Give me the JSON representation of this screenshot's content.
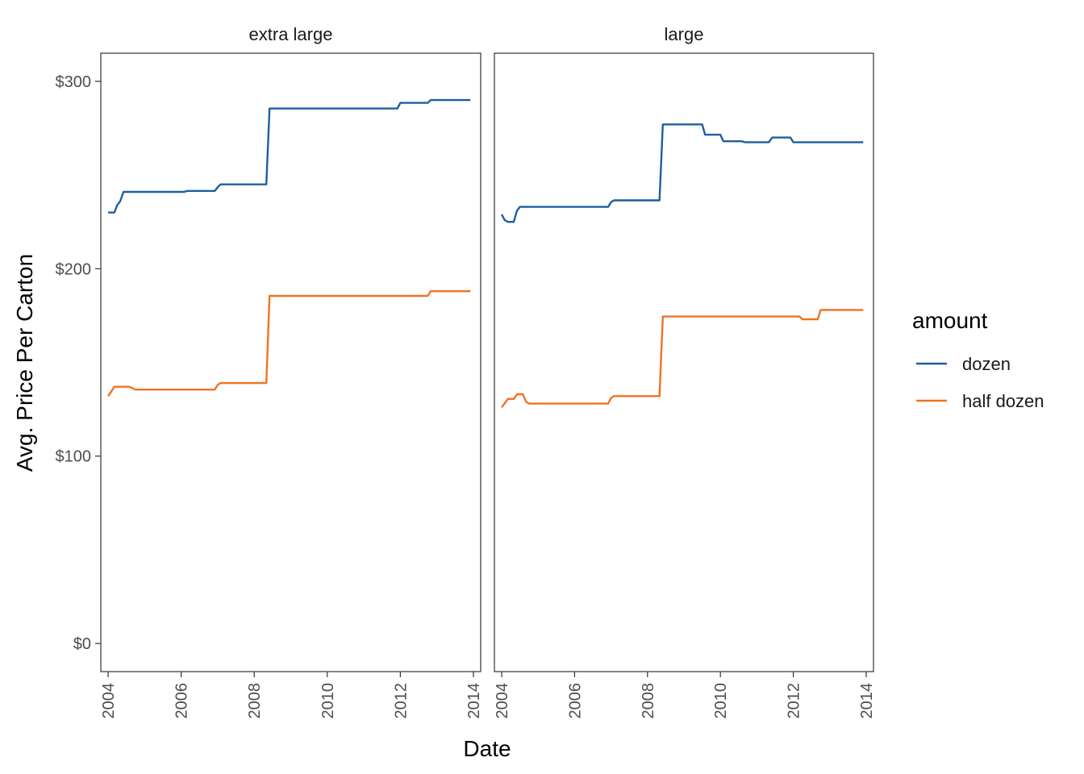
{
  "chart_data": {
    "type": "line",
    "xlabel": "Date",
    "ylabel": "Avg. Price Per Carton",
    "ylim": [
      -15,
      315
    ],
    "xlim": [
      2003.8,
      2014.2
    ],
    "x_ticks": [
      2004,
      2006,
      2008,
      2010,
      2012,
      2014
    ],
    "x_tick_labels": [
      "2004",
      "2006",
      "2008",
      "2010",
      "2012",
      "2014"
    ],
    "y_ticks": [
      0,
      100,
      200,
      300
    ],
    "y_tick_labels": [
      "$0",
      "$100",
      "$200",
      "$300"
    ],
    "grid": false,
    "legend": {
      "title": "amount",
      "placement": "right",
      "entries": [
        {
          "label": "dozen",
          "color": "#1f5f9e"
        },
        {
          "label": "half dozen",
          "color": "#f07222"
        }
      ]
    },
    "panels": [
      {
        "title": "extra large",
        "series": [
          {
            "name": "dozen",
            "color": "#1f5f9e",
            "points": [
              [
                2004.0,
                230
              ],
              [
                2004.17,
                230
              ],
              [
                2004.25,
                234
              ],
              [
                2004.33,
                236
              ],
              [
                2004.42,
                241
              ],
              [
                2006.08,
                241
              ],
              [
                2006.17,
                241.5
              ],
              [
                2006.92,
                241.5
              ],
              [
                2007.0,
                243.5
              ],
              [
                2007.08,
                245
              ],
              [
                2008.33,
                245
              ],
              [
                2008.42,
                285.5
              ],
              [
                2011.92,
                285.5
              ],
              [
                2012.0,
                288.5
              ],
              [
                2012.75,
                288.5
              ],
              [
                2012.83,
                290
              ],
              [
                2013.92,
                290
              ]
            ]
          },
          {
            "name": "half dozen",
            "color": "#f07222",
            "points": [
              [
                2004.0,
                132
              ],
              [
                2004.17,
                137
              ],
              [
                2004.58,
                137
              ],
              [
                2004.75,
                135.5
              ],
              [
                2006.92,
                135.5
              ],
              [
                2007.0,
                138
              ],
              [
                2007.08,
                139
              ],
              [
                2008.33,
                139
              ],
              [
                2008.42,
                185.5
              ],
              [
                2012.75,
                185.5
              ],
              [
                2012.83,
                188
              ],
              [
                2013.92,
                188
              ]
            ]
          }
        ]
      },
      {
        "title": "large",
        "series": [
          {
            "name": "dozen",
            "color": "#1f5f9e",
            "points": [
              [
                2004.0,
                229
              ],
              [
                2004.08,
                226
              ],
              [
                2004.17,
                225
              ],
              [
                2004.33,
                225
              ],
              [
                2004.42,
                231
              ],
              [
                2004.5,
                233
              ],
              [
                2006.92,
                233
              ],
              [
                2007.0,
                235.5
              ],
              [
                2007.08,
                236.5
              ],
              [
                2008.33,
                236.5
              ],
              [
                2008.42,
                277
              ],
              [
                2009.5,
                277
              ],
              [
                2009.58,
                271.5
              ],
              [
                2010.0,
                271.5
              ],
              [
                2010.08,
                268
              ],
              [
                2010.58,
                268
              ],
              [
                2010.67,
                267.5
              ],
              [
                2011.33,
                267.5
              ],
              [
                2011.42,
                270
              ],
              [
                2011.92,
                270
              ],
              [
                2012.0,
                267.5
              ],
              [
                2013.92,
                267.5
              ]
            ]
          },
          {
            "name": "half dozen",
            "color": "#f07222",
            "points": [
              [
                2004.0,
                126
              ],
              [
                2004.17,
                130.5
              ],
              [
                2004.33,
                130.5
              ],
              [
                2004.42,
                133
              ],
              [
                2004.58,
                133
              ],
              [
                2004.67,
                129
              ],
              [
                2004.75,
                128
              ],
              [
                2006.92,
                128
              ],
              [
                2007.0,
                131
              ],
              [
                2007.08,
                132
              ],
              [
                2008.33,
                132
              ],
              [
                2008.42,
                174.5
              ],
              [
                2012.17,
                174.5
              ],
              [
                2012.25,
                173
              ],
              [
                2012.67,
                173
              ],
              [
                2012.75,
                178
              ],
              [
                2013.92,
                178
              ]
            ]
          }
        ]
      }
    ]
  }
}
